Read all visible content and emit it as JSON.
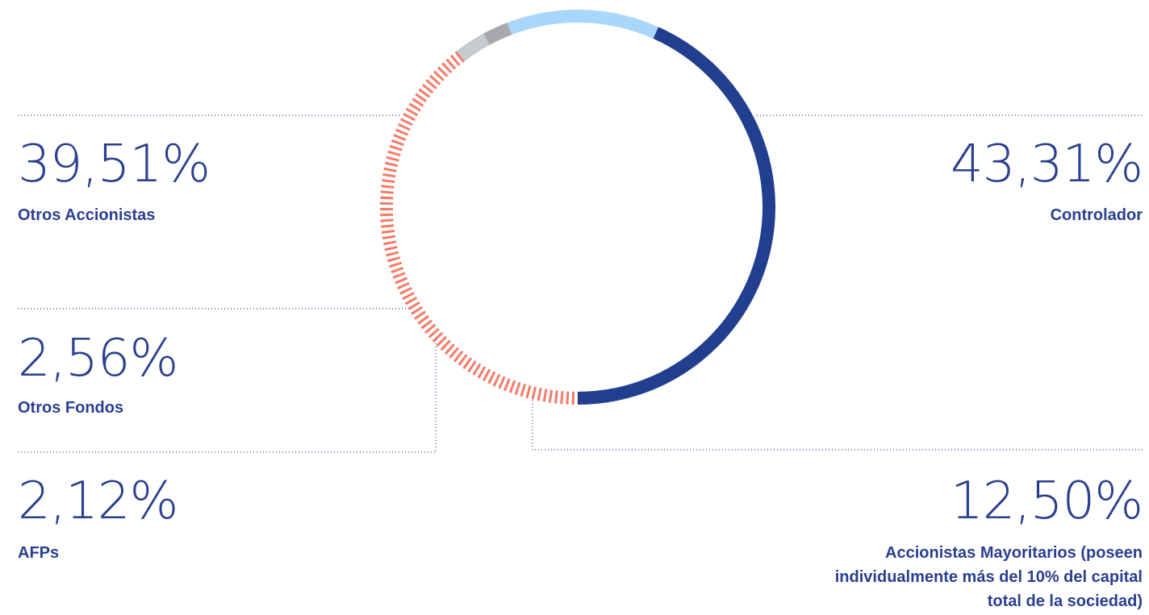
{
  "chart_data": {
    "type": "donut",
    "segments": [
      {
        "label": "Controlador",
        "value": 43.31,
        "display": "43,31%",
        "color": "#223e8f",
        "style": "solid"
      },
      {
        "label": "Accionistas Mayoritarios (poseen individualmente más del 10% del capital total de la sociedad)",
        "value": 12.5,
        "display": "12,50%",
        "color": "#a9d6fb",
        "style": "solid"
      },
      {
        "label": "AFPs",
        "value": 2.12,
        "display": "2,12%",
        "color": "#a7a8ab",
        "style": "solid"
      },
      {
        "label": "Otros Fondos",
        "value": 2.56,
        "display": "2,56%",
        "color": "#c6cbcf",
        "style": "solid"
      },
      {
        "label": "Otros Accionistas",
        "value": 39.51,
        "display": "39,51%",
        "color": "#f47a68",
        "style": "dashed"
      }
    ]
  }
}
